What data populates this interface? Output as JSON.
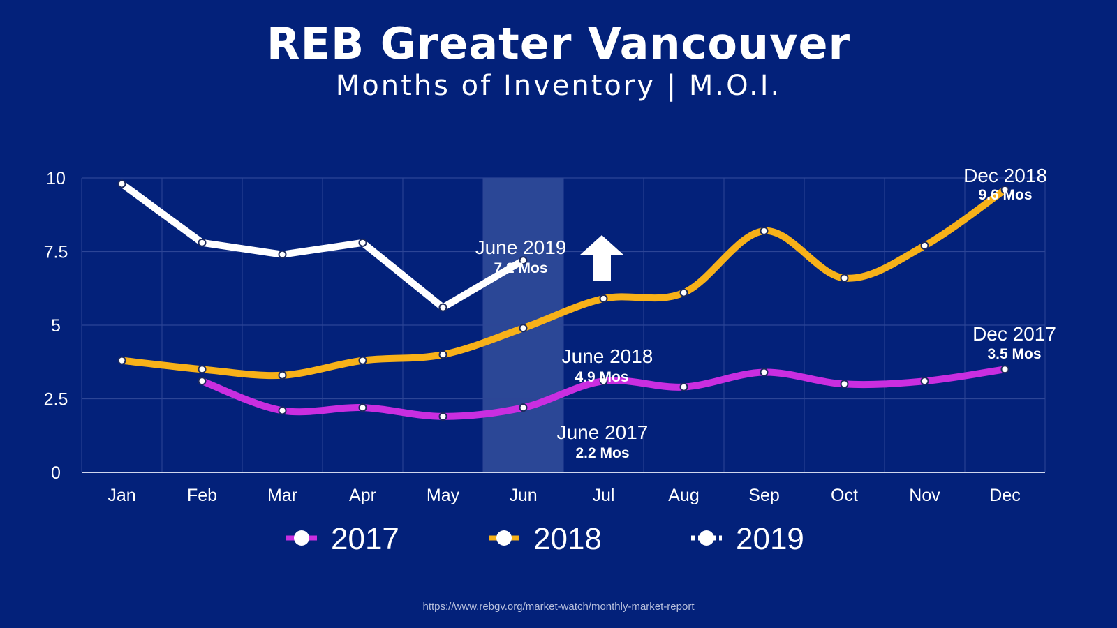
{
  "title": "REB Greater Vancouver",
  "subtitle": "Months of Inventory | M.O.I.",
  "source": "https://www.rebgv.org/market-watch/monthly-market-report",
  "colors": {
    "background": "#03217a",
    "grid": "#2c4596",
    "highlight": "#3a54a0",
    "2017": "#c92ee0",
    "2018": "#f7b119",
    "2019": "#ffffff",
    "arrow": "#ffffff"
  },
  "chart_data": {
    "type": "line",
    "categories": [
      "Jan",
      "Feb",
      "Mar",
      "Apr",
      "May",
      "Jun",
      "Jul",
      "Aug",
      "Sep",
      "Oct",
      "Nov",
      "Dec"
    ],
    "y_ticks": [
      "0",
      "2.5",
      "5",
      "7.5",
      "10"
    ],
    "y_tick_values": [
      0,
      2.5,
      5,
      7.5,
      10
    ],
    "ylim": [
      0,
      10
    ],
    "grid": true,
    "legend_position": "bottom",
    "highlight_category": "Jun",
    "series": [
      {
        "name": "2017",
        "color": "#c92ee0",
        "smooth": true,
        "values": [
          null,
          3.1,
          2.1,
          2.2,
          1.9,
          2.2,
          3.1,
          2.9,
          3.4,
          3.0,
          3.1,
          3.5
        ]
      },
      {
        "name": "2018",
        "color": "#f7b119",
        "smooth": true,
        "values": [
          3.8,
          3.5,
          3.3,
          3.8,
          4.0,
          4.9,
          5.9,
          6.1,
          8.2,
          6.6,
          7.7,
          9.6
        ]
      },
      {
        "name": "2019",
        "color": "#ffffff",
        "smooth": false,
        "values": [
          9.8,
          7.8,
          7.4,
          7.8,
          5.6,
          7.2,
          null,
          null,
          null,
          null,
          null,
          null
        ]
      }
    ],
    "annotations": [
      {
        "head": "June 2019",
        "sub": "7.2 Mos"
      },
      {
        "head": "June 2018",
        "sub": "4.9 Mos"
      },
      {
        "head": "June 2017",
        "sub": "2.2 Mos"
      },
      {
        "head": "Dec 2018",
        "sub": "9.6 Mos"
      },
      {
        "head": "Dec 2017",
        "sub": "3.5 Mos"
      }
    ]
  }
}
